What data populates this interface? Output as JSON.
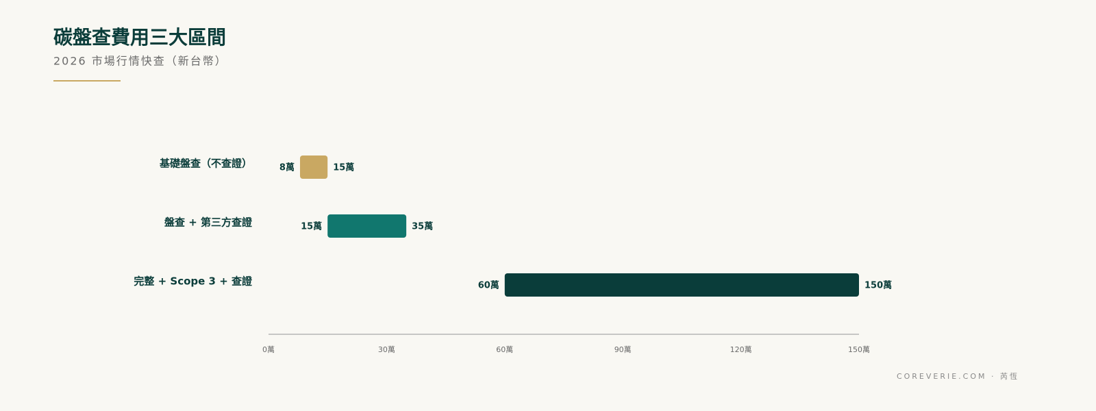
{
  "chart_data": {
    "type": "range-bar",
    "title": "碳盤查費用三大區間",
    "subtitle": "2026 市場行情快查（新台幣）",
    "categories": [
      "基礎盤查（不查證）",
      "盤查 + 第三方查證",
      "完整 + Scope 3 + 查證"
    ],
    "values": [
      [
        8,
        15
      ],
      [
        15,
        35
      ],
      [
        60,
        150
      ]
    ],
    "value_labels": [
      [
        "8萬",
        "15萬"
      ],
      [
        "15萬",
        "35萬"
      ],
      [
        "60萬",
        "150萬"
      ]
    ],
    "colors": [
      "#c9a862",
      "#11776e",
      "#0a3d3a"
    ],
    "xlim": [
      0,
      150
    ],
    "xticks": [
      {
        "value": 0,
        "label": "0萬"
      },
      {
        "value": 30,
        "label": "30萬"
      },
      {
        "value": 60,
        "label": "60萬"
      },
      {
        "value": 90,
        "label": "90萬"
      },
      {
        "value": 120,
        "label": "120萬"
      },
      {
        "value": 150,
        "label": "150萬"
      }
    ],
    "grid": false
  },
  "footer": "COREVERIE.COM · 芮恆"
}
